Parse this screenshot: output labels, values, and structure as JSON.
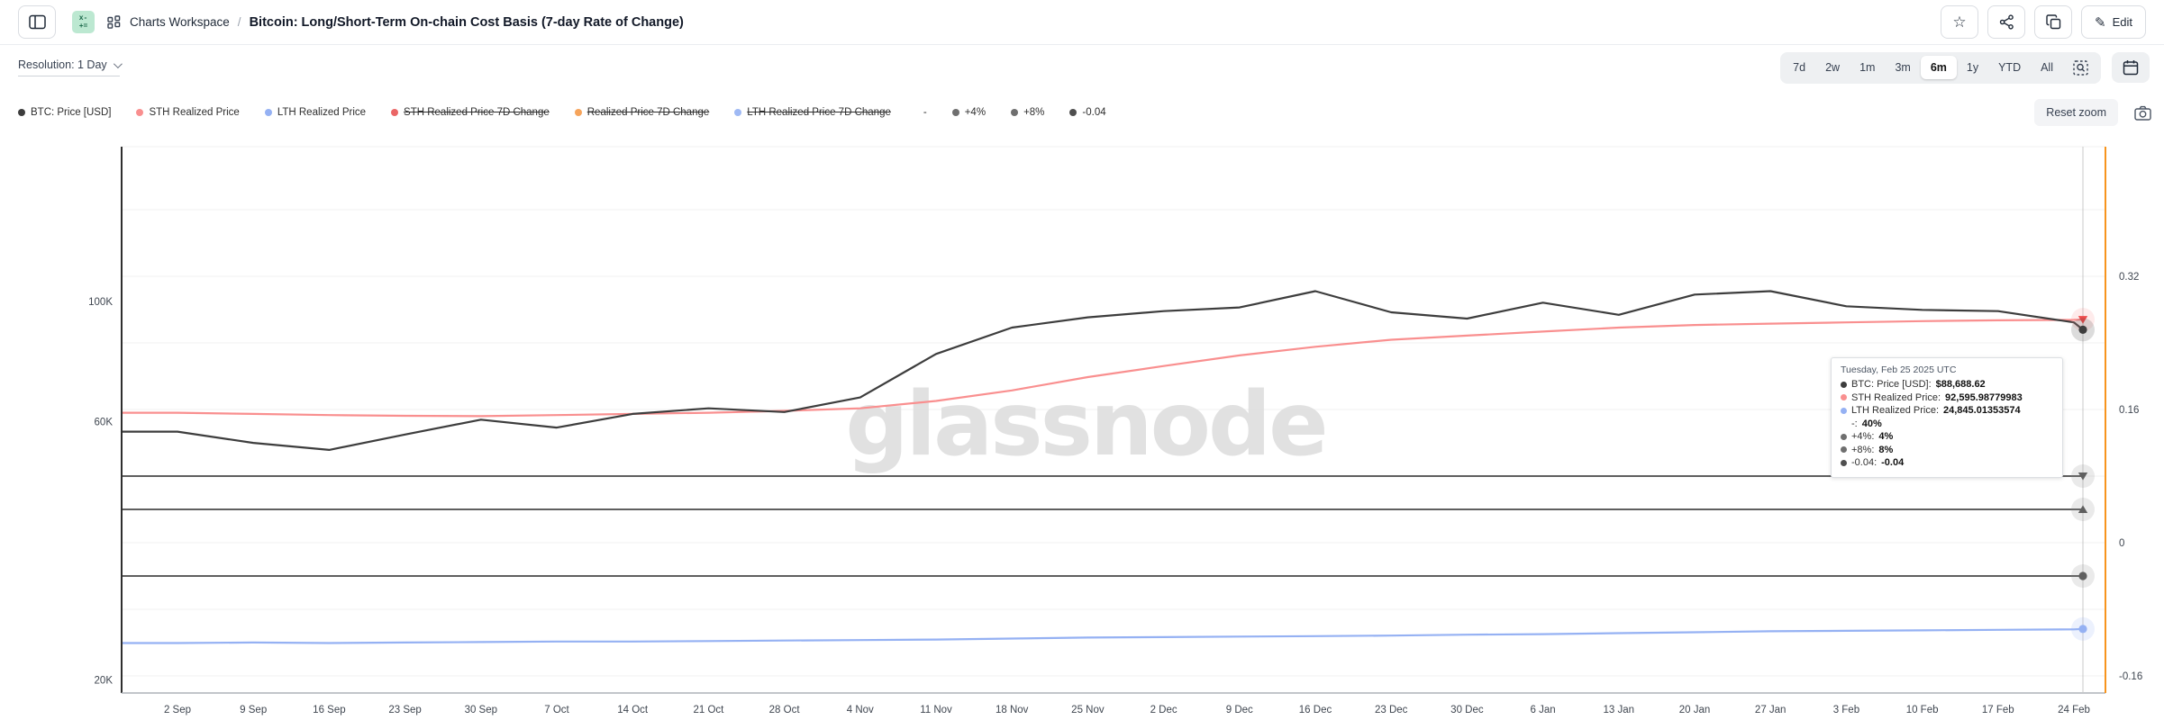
{
  "header": {
    "breadcrumb": "Charts Workspace",
    "separator": "/",
    "title": "Bitcoin: Long/Short-Term On-chain Cost Basis (7-day Rate of Change)",
    "edit_label": "Edit",
    "star_glyph": "☆",
    "pencil_glyph": "✎",
    "badge_text_top": "x-",
    "badge_text_bottom": "+="
  },
  "toolbar": {
    "resolution_label": "Resolution: 1 Day",
    "ranges": [
      "7d",
      "2w",
      "1m",
      "3m",
      "6m",
      "1y",
      "YTD",
      "All"
    ],
    "selected_range": "6m",
    "reset_zoom_label": "Reset zoom"
  },
  "legend": {
    "items": [
      {
        "label": "BTC: Price [USD]",
        "color": "#3d3d3d",
        "dot": true,
        "strikethrough": false
      },
      {
        "label": "STH Realized Price",
        "color": "#f98f8f",
        "dot": true,
        "strikethrough": false
      },
      {
        "label": "LTH Realized Price",
        "color": "#95b1f3",
        "dot": true,
        "strikethrough": false
      },
      {
        "label": "STH Realized Price 7D Change",
        "color": "#e85555",
        "dot": true,
        "strikethrough": true
      },
      {
        "label": "Realized Price 7D Change",
        "color": "#f59a49",
        "dot": true,
        "strikethrough": true
      },
      {
        "label": "LTH Realized Price 7D Change",
        "color": "#95b1f3",
        "dot": true,
        "strikethrough": true
      },
      {
        "label": "-",
        "color": "transparent",
        "dot": false,
        "strikethrough": false
      },
      {
        "label": "+4%",
        "color": "#6f6f6f",
        "dot": true,
        "strikethrough": false
      },
      {
        "label": "+8%",
        "color": "#6f6f6f",
        "dot": true,
        "strikethrough": false
      },
      {
        "label": "-0.04",
        "color": "#4f4f4f",
        "dot": true,
        "strikethrough": false
      }
    ]
  },
  "tooltip": {
    "title": "Tuesday, Feb 25 2025 UTC",
    "rows": [
      {
        "label": "BTC: Price [USD]",
        "value": "$88,688.62",
        "color": "#3d3d3d"
      },
      {
        "label": "STH Realized Price",
        "value": "92,595.98779983",
        "color": "#f98f8f"
      },
      {
        "label": "LTH Realized Price",
        "value": "24,845.01353574",
        "color": "#95b1f3"
      },
      {
        "label": "-",
        "value": "40%",
        "color": null
      },
      {
        "label": "+4%",
        "value": "4%",
        "color": "#6f6f6f"
      },
      {
        "label": "+8%",
        "value": "8%",
        "color": "#6f6f6f"
      },
      {
        "label": "-0.04",
        "value": "-0.04",
        "color": "#4f4f4f"
      }
    ]
  },
  "chart_data": {
    "type": "line",
    "title": "Bitcoin: Long/Short-Term On-chain Cost Basis (7-day Rate of Change)",
    "watermark": "glassnode",
    "legend_position": "top-left",
    "grid": "horizontal-light",
    "x_tick_labels": [
      "2 Sep",
      "9 Sep",
      "16 Sep",
      "23 Sep",
      "30 Sep",
      "7 Oct",
      "14 Oct",
      "21 Oct",
      "28 Oct",
      "4 Nov",
      "11 Nov",
      "18 Nov",
      "25 Nov",
      "2 Dec",
      "9 Dec",
      "16 Dec",
      "23 Dec",
      "30 Dec",
      "6 Jan",
      "13 Jan",
      "20 Jan",
      "27 Jan",
      "3 Feb",
      "10 Feb",
      "17 Feb",
      "24 Feb"
    ],
    "cursor_date": "Tuesday, Feb 25 2025 UTC",
    "axes": {
      "left": {
        "scale": "log",
        "unit": "USD",
        "tick_labels": [
          "100K",
          "60K",
          "20K"
        ],
        "tick_values": [
          100000,
          60000,
          20000
        ]
      },
      "right": {
        "scale": "linear",
        "tick_labels": [
          "0.32",
          "0.16",
          "0",
          "-0.16"
        ],
        "tick_values": [
          0.32,
          0.16,
          0,
          -0.16
        ],
        "axis_color": "#f7941d"
      }
    },
    "series": [
      {
        "name": "BTC: Price [USD]",
        "axis": "left",
        "color": "#3d3d3d",
        "marker": "circle",
        "values": [
          57500,
          54800,
          53200,
          56800,
          60500,
          58500,
          62000,
          63500,
          62500,
          66500,
          80000,
          89500,
          93500,
          96000,
          97500,
          104500,
          95500,
          93000,
          99500,
          94500,
          103000,
          104500,
          98000,
          96500,
          96000,
          91500
        ],
        "end_label": "25 Feb",
        "end_value": 88688.62
      },
      {
        "name": "STH Realized Price",
        "axis": "left",
        "color": "#f98f8f",
        "marker": "triangle-down",
        "marker_color": "#ee4b4b",
        "values": [
          62300,
          62000,
          61700,
          61500,
          61400,
          61700,
          62000,
          62300,
          62800,
          63500,
          65500,
          68500,
          72500,
          76000,
          79500,
          82500,
          85000,
          86500,
          88000,
          89500,
          90500,
          91000,
          91500,
          92000,
          92300,
          92500
        ],
        "end_label": "25 Feb",
        "end_value": 92595.98779983
      },
      {
        "name": "LTH Realized Price",
        "axis": "left",
        "color": "#95b1f3",
        "marker": "circle",
        "values": [
          23400,
          23450,
          23400,
          23450,
          23500,
          23550,
          23550,
          23600,
          23650,
          23700,
          23750,
          23850,
          23950,
          24000,
          24050,
          24100,
          24150,
          24250,
          24300,
          24400,
          24500,
          24600,
          24650,
          24700,
          24750,
          24800
        ],
        "end_label": "25 Feb",
        "end_value": 24845.01353574
      },
      {
        "name": "+8%",
        "axis": "right",
        "color": "#5f5f5f",
        "marker": "triangle-down",
        "constant": 0.08,
        "cursor_value": "8%"
      },
      {
        "name": "+4%",
        "axis": "right",
        "color": "#5f5f5f",
        "marker": "triangle-up",
        "constant": 0.04,
        "cursor_value": "4%"
      },
      {
        "name": "-0.04",
        "axis": "right",
        "color": "#5f5f5f",
        "marker": "circle",
        "constant": -0.04,
        "cursor_value": "-0.04"
      },
      {
        "name": "-",
        "visible": false,
        "cursor_value": "40%"
      }
    ]
  }
}
